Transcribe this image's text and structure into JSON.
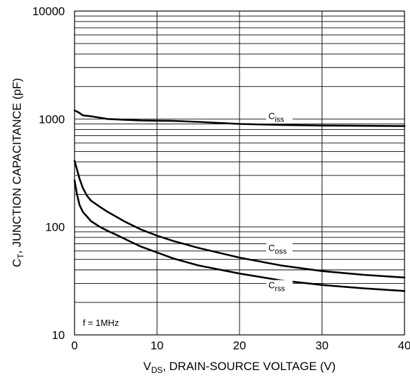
{
  "chart_data": {
    "type": "line",
    "xlabel": {
      "main": "V",
      "sub": "DS",
      "rest": ", DRAIN-SOURCE VOLTAGE (V)"
    },
    "ylabel": {
      "main": "C",
      "sub": "T",
      "rest": ", JUNCTION CAPACITANCE (pF)"
    },
    "xlim": [
      0,
      40
    ],
    "ylim": [
      10,
      10000
    ],
    "yscale": "log",
    "grid": true,
    "x_ticks": [
      0,
      10,
      20,
      30,
      40
    ],
    "x_tick_labels": [
      "0",
      "10",
      "20",
      "30",
      "40"
    ],
    "y_ticks": [
      10,
      100,
      1000,
      10000
    ],
    "y_tick_labels": [
      "10",
      "100",
      "1000",
      "10000"
    ],
    "annotation": "f = 1MHz",
    "series": [
      {
        "name": "Ciss",
        "label_main": "C",
        "label_sub": "iss",
        "label_at": [
          23.5,
          1000
        ],
        "x": [
          0,
          0.5,
          1,
          2,
          4,
          6,
          8,
          10,
          12,
          15,
          20,
          25,
          30,
          35,
          40
        ],
        "y": [
          1200,
          1150,
          1080,
          1060,
          1000,
          985,
          970,
          965,
          960,
          940,
          900,
          880,
          870,
          865,
          860
        ]
      },
      {
        "name": "Coss",
        "label_main": "C",
        "label_sub": "oss",
        "label_at": [
          23.5,
          60
        ],
        "x": [
          0,
          0.3,
          0.6,
          1,
          1.5,
          2,
          3,
          4,
          5,
          6,
          8,
          10,
          12,
          15,
          20,
          25,
          30,
          35,
          40
        ],
        "y": [
          410,
          340,
          280,
          230,
          195,
          175,
          155,
          138,
          125,
          113,
          95,
          83,
          74,
          64,
          52,
          44,
          39,
          36,
          34
        ]
      },
      {
        "name": "Crss",
        "label_main": "C",
        "label_sub": "rss",
        "label_at": [
          23.5,
          27
        ],
        "x": [
          0,
          0.3,
          0.6,
          1,
          1.5,
          2,
          3,
          4,
          5,
          6,
          8,
          10,
          12,
          15,
          20,
          25,
          30,
          35,
          40
        ],
        "y": [
          270,
          200,
          160,
          138,
          125,
          113,
          101,
          92,
          85,
          78,
          66,
          58,
          51,
          44,
          37,
          32,
          29,
          27,
          25.5
        ]
      }
    ]
  }
}
